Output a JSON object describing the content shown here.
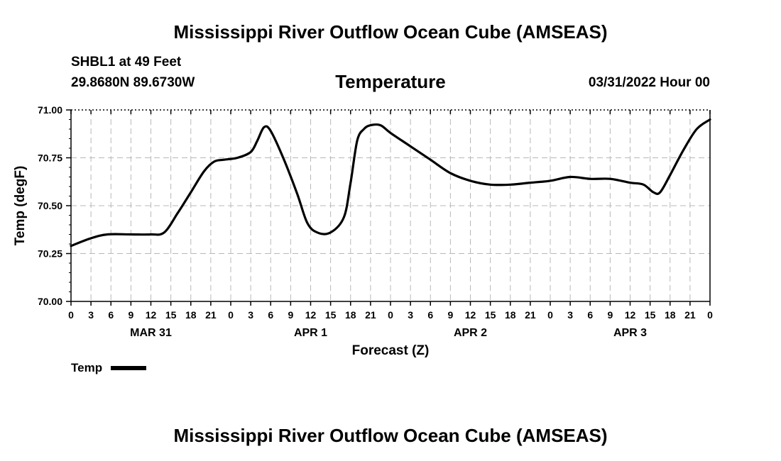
{
  "header": {
    "title": "Mississippi River Outflow Ocean Cube (AMSEAS)",
    "station": "SHBL1 at 49 Feet",
    "coords": "29.8680N  89.6730W",
    "subtitle": "Temperature",
    "timestamp": "03/31/2022 Hour 00"
  },
  "footer": {
    "title": "Mississippi River Outflow Ocean Cube (AMSEAS)"
  },
  "legend": {
    "label": "Temp",
    "color": "#000000"
  },
  "chart_data": {
    "type": "line",
    "title": "Temperature",
    "xlabel": "Forecast (Z)",
    "ylabel": "Temp (degF)",
    "ylim": [
      70.0,
      71.0
    ],
    "xlim": [
      0,
      96
    ],
    "yticks": [
      "70.00",
      "70.25",
      "70.50",
      "70.75",
      "71.00"
    ],
    "xtick_labels": [
      "0",
      "3",
      "6",
      "9",
      "12",
      "15",
      "18",
      "21",
      "0",
      "3",
      "6",
      "9",
      "12",
      "15",
      "18",
      "21",
      "0",
      "3",
      "6",
      "9",
      "12",
      "15",
      "18",
      "21",
      "0",
      "3",
      "6",
      "9",
      "12",
      "15",
      "18",
      "21",
      "0"
    ],
    "day_labels": [
      {
        "label": "MAR 31",
        "hour": 12
      },
      {
        "label": "APR 1",
        "hour": 36
      },
      {
        "label": "APR 2",
        "hour": 60
      },
      {
        "label": "APR 3",
        "hour": 84
      }
    ],
    "grid": true,
    "series": [
      {
        "name": "Temp",
        "color": "#000000",
        "x": [
          0,
          3,
          5.5,
          9,
          12,
          14,
          16,
          18,
          20,
          21.5,
          23,
          25,
          27,
          28,
          29,
          30,
          32,
          34,
          35.5,
          37,
          39,
          41,
          42,
          43,
          44,
          45,
          46.5,
          48,
          51,
          54,
          57,
          60,
          63,
          66,
          69,
          72,
          75,
          78,
          81,
          84,
          86,
          87.5,
          88.5,
          90,
          92,
          94,
          96
        ],
        "y": [
          70.29,
          70.33,
          70.35,
          70.35,
          70.35,
          70.36,
          70.46,
          70.57,
          70.68,
          70.73,
          70.74,
          70.75,
          70.78,
          70.84,
          70.91,
          70.89,
          70.74,
          70.56,
          70.41,
          70.36,
          70.36,
          70.44,
          70.62,
          70.84,
          70.9,
          70.92,
          70.92,
          70.88,
          70.81,
          70.74,
          70.67,
          70.63,
          70.61,
          70.61,
          70.62,
          70.63,
          70.65,
          70.64,
          70.64,
          70.62,
          70.61,
          70.57,
          70.57,
          70.66,
          70.79,
          70.9,
          70.95
        ]
      }
    ]
  }
}
